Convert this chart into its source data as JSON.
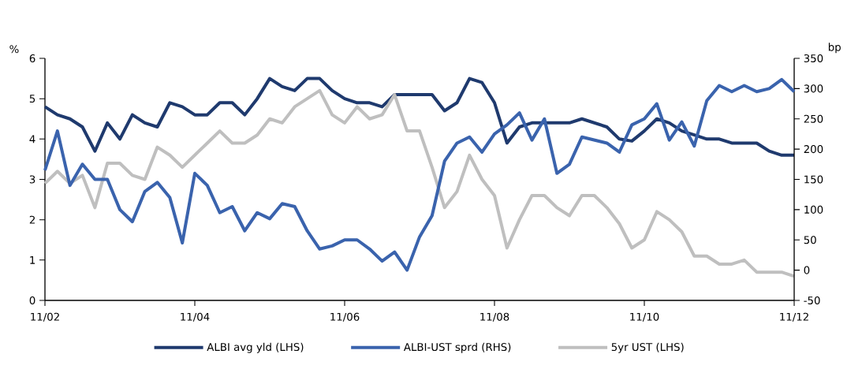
{
  "chart_data": {
    "type": "line",
    "ylabel": "%",
    "y2label": "bp",
    "x": [
      "2002-11",
      "2003-01",
      "2003-03",
      "2003-05",
      "2003-07",
      "2003-09",
      "2003-11",
      "2004-01",
      "2004-03",
      "2004-05",
      "2004-07",
      "2004-09",
      "2004-11",
      "2005-01",
      "2005-03",
      "2005-05",
      "2005-07",
      "2005-09",
      "2005-11",
      "2006-01",
      "2006-03",
      "2006-05",
      "2006-07",
      "2006-09",
      "2006-11",
      "2007-01",
      "2007-03",
      "2007-05",
      "2007-07",
      "2007-09",
      "2007-11",
      "2008-01",
      "2008-03",
      "2008-05",
      "2008-07",
      "2008-09",
      "2008-11",
      "2009-01",
      "2009-03",
      "2009-05",
      "2009-07",
      "2009-09",
      "2009-11",
      "2010-01",
      "2010-03",
      "2010-05",
      "2010-07",
      "2010-09",
      "2010-11",
      "2011-01",
      "2011-03",
      "2011-05",
      "2011-07",
      "2011-09",
      "2011-11",
      "2012-01",
      "2012-03",
      "2012-05",
      "2012-07",
      "2012-09",
      "2012-11"
    ],
    "series": [
      {
        "name": "ALBI avg yld (LHS)",
        "color": "#1f3a6e",
        "values": [
          4.8,
          4.6,
          4.5,
          4.3,
          3.7,
          4.4,
          4.0,
          4.6,
          4.4,
          4.3,
          4.9,
          4.8,
          4.6,
          4.6,
          4.9,
          4.9,
          4.6,
          5.0,
          5.5,
          5.3,
          5.2,
          5.5,
          5.5,
          5.2,
          5.0,
          4.9,
          4.9,
          4.8,
          5.1,
          5.1,
          5.1,
          5.1,
          4.7,
          4.9,
          5.5,
          5.4,
          4.9,
          3.9,
          4.3,
          4.4,
          4.4,
          4.4,
          4.4,
          4.5,
          4.4,
          4.3,
          4.0,
          3.95,
          4.2,
          4.5,
          4.4,
          4.2,
          4.1,
          4.0,
          4.0,
          3.9,
          3.9,
          3.9,
          3.7,
          3.6,
          3.6
        ]
      },
      {
        "name": "ALBI-UST sprd (RHS)",
        "color": "#3a63ad",
        "axis": "y2",
        "values": [
          165,
          230,
          140,
          175,
          150,
          150,
          100,
          80,
          130,
          145,
          120,
          45,
          160,
          140,
          95,
          105,
          65,
          95,
          85,
          110,
          105,
          65,
          35,
          40,
          50,
          50,
          35,
          15,
          30,
          0,
          55,
          90,
          180,
          210,
          220,
          195,
          225,
          240,
          260,
          215,
          250,
          160,
          175,
          220,
          215,
          210,
          195,
          240,
          250,
          275,
          215,
          245,
          205,
          280,
          305,
          295,
          305,
          295,
          300,
          315,
          295
        ]
      },
      {
        "name": "5yr UST (LHS)",
        "color": "#bfbfbf",
        "values": [
          2.9,
          3.2,
          2.9,
          3.1,
          2.3,
          3.4,
          3.4,
          3.1,
          3.0,
          3.8,
          3.6,
          3.3,
          3.6,
          3.9,
          4.2,
          3.9,
          3.9,
          4.1,
          4.5,
          4.4,
          4.8,
          5.0,
          5.2,
          4.6,
          4.4,
          4.8,
          4.5,
          4.6,
          5.1,
          4.2,
          4.2,
          3.3,
          2.3,
          2.7,
          3.6,
          3.0,
          2.6,
          1.3,
          2.0,
          2.6,
          2.6,
          2.3,
          2.1,
          2.6,
          2.6,
          2.3,
          1.9,
          1.3,
          1.5,
          2.2,
          2.0,
          1.7,
          1.1,
          1.1,
          0.9,
          0.9,
          1.0,
          0.7,
          0.7,
          0.7,
          0.6
        ]
      }
    ],
    "xlim": [
      "2002-11",
      "2012-11"
    ],
    "xticks": [
      {
        "value": "2002-11",
        "label": "11/02"
      },
      {
        "value": "2004-11",
        "label": "11/04"
      },
      {
        "value": "2006-11",
        "label": "11/06"
      },
      {
        "value": "2008-11",
        "label": "11/08"
      },
      {
        "value": "2010-11",
        "label": "11/10"
      },
      {
        "value": "2012-11",
        "label": "11/12"
      }
    ],
    "ylim": [
      0,
      6
    ],
    "yticks": [
      0,
      1,
      2,
      3,
      4,
      5,
      6
    ],
    "y2lim": [
      -50,
      350
    ],
    "y2ticks": [
      -50,
      0,
      50,
      100,
      150,
      200,
      250,
      300,
      350
    ],
    "line_style": "solid",
    "legend": "bottom"
  }
}
